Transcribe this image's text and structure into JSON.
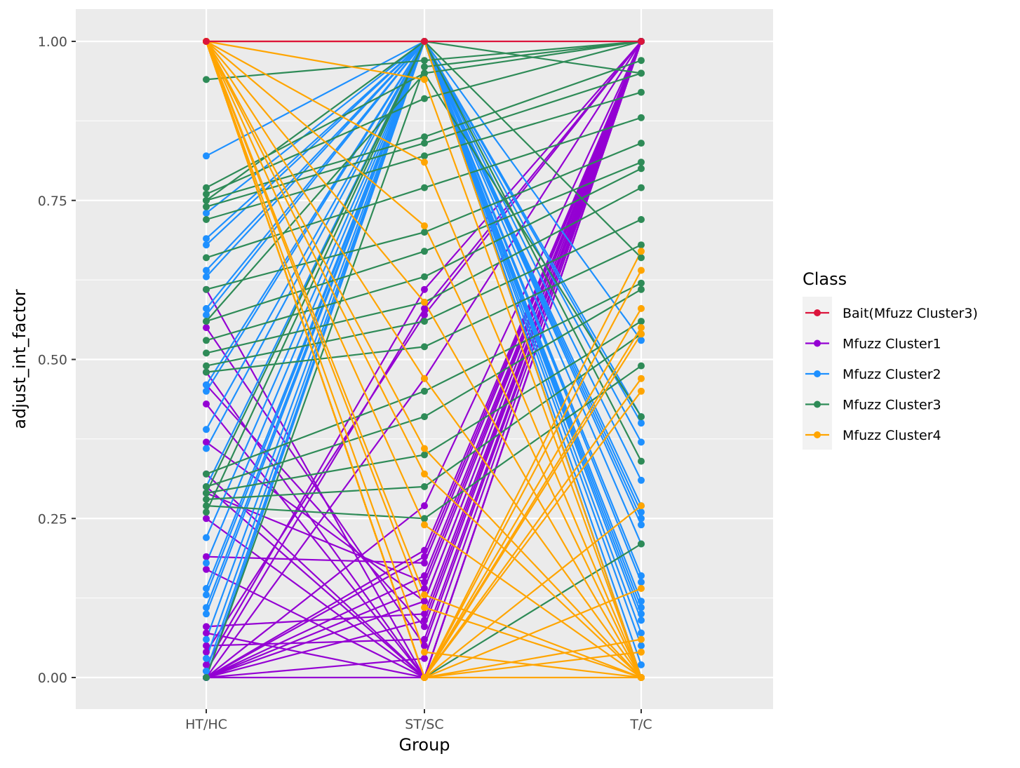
{
  "chart_data": {
    "type": "line",
    "title": "",
    "xlabel": "Group",
    "ylabel": "adjust_int_factor",
    "categories": [
      "HT/HC",
      "ST/SC",
      "T/C"
    ],
    "ylim": [
      -0.05,
      1.05
    ],
    "yticks": [
      "0.00",
      "0.25",
      "0.50",
      "0.75",
      "1.00"
    ],
    "ytick_values": [
      0,
      0.25,
      0.5,
      0.75,
      1.0
    ],
    "grid": true,
    "legend": {
      "title": "Class",
      "position": "right",
      "entries": [
        {
          "name": "Bait(Mfuzz Cluster3)",
          "color": "#DC143C"
        },
        {
          "name": "Mfuzz Cluster1",
          "color": "#9400D3"
        },
        {
          "name": "Mfuzz Cluster2",
          "color": "#1E90FF"
        },
        {
          "name": "Mfuzz Cluster3",
          "color": "#2E8B57"
        },
        {
          "name": "Mfuzz Cluster4",
          "color": "#FFA500"
        }
      ]
    },
    "series": [
      {
        "name": "Bait(Mfuzz Cluster3)",
        "color": "#DC143C",
        "lines": [
          [
            1.0,
            1.0,
            1.0
          ]
        ]
      },
      {
        "name": "Mfuzz Cluster1",
        "color": "#9400D3",
        "lines": [
          [
            0.61,
            0.0,
            1.0
          ],
          [
            0.55,
            0.05,
            1.0
          ],
          [
            0.48,
            0.0,
            1.0
          ],
          [
            0.46,
            0.08,
            1.0
          ],
          [
            0.43,
            0.0,
            1.0
          ],
          [
            0.37,
            0.12,
            1.0
          ],
          [
            0.32,
            0.0,
            1.0
          ],
          [
            0.29,
            0.15,
            1.0
          ],
          [
            0.25,
            0.0,
            1.0
          ],
          [
            0.19,
            0.18,
            1.0
          ],
          [
            0.17,
            0.0,
            1.0
          ],
          [
            0.08,
            0.1,
            1.0
          ],
          [
            0.07,
            0.0,
            1.0
          ],
          [
            0.05,
            0.06,
            1.0
          ],
          [
            0.02,
            0.61,
            1.0
          ],
          [
            0.01,
            0.58,
            1.0
          ],
          [
            0.0,
            0.47,
            1.0
          ],
          [
            0.0,
            0.27,
            1.0
          ],
          [
            0.0,
            0.2,
            1.0
          ],
          [
            0.0,
            0.19,
            1.0
          ],
          [
            0.0,
            0.16,
            1.0
          ],
          [
            0.0,
            0.14,
            1.0
          ],
          [
            0.0,
            0.12,
            1.0
          ],
          [
            0.0,
            0.09,
            1.0
          ],
          [
            0.0,
            0.03,
            1.0
          ],
          [
            0.0,
            0.0,
            1.0
          ],
          [
            0.3,
            0.0,
            1.0
          ],
          [
            0.04,
            0.57,
            1.0
          ]
        ]
      },
      {
        "name": "Mfuzz Cluster2",
        "color": "#1E90FF",
        "lines": [
          [
            0.82,
            1.0,
            0.53
          ],
          [
            0.73,
            1.0,
            0.41
          ],
          [
            0.69,
            1.0,
            0.4
          ],
          [
            0.68,
            1.0,
            0.37
          ],
          [
            0.64,
            1.0,
            0.31
          ],
          [
            0.63,
            1.0,
            0.27
          ],
          [
            0.58,
            1.0,
            0.26
          ],
          [
            0.57,
            1.0,
            0.24
          ],
          [
            0.46,
            1.0,
            0.21
          ],
          [
            0.45,
            1.0,
            0.16
          ],
          [
            0.39,
            1.0,
            0.15
          ],
          [
            0.36,
            1.0,
            0.12
          ],
          [
            0.3,
            1.0,
            0.11
          ],
          [
            0.22,
            1.0,
            0.1
          ],
          [
            0.18,
            1.0,
            0.09
          ],
          [
            0.14,
            1.0,
            0.07
          ],
          [
            0.13,
            1.0,
            0.05
          ],
          [
            0.11,
            1.0,
            0.02
          ],
          [
            0.1,
            1.0,
            0.0
          ],
          [
            0.06,
            1.0,
            0.0
          ],
          [
            0.03,
            1.0,
            0.0
          ],
          [
            0.01,
            1.0,
            0.0
          ],
          [
            0.0,
            1.0,
            0.0
          ],
          [
            0.0,
            1.0,
            0.25
          ]
        ]
      },
      {
        "name": "Mfuzz Cluster3",
        "color": "#2E8B57",
        "lines": [
          [
            0.94,
            0.97,
            1.0
          ],
          [
            0.77,
            0.95,
            1.0
          ],
          [
            0.76,
            0.91,
            1.0
          ],
          [
            0.75,
            0.85,
            0.97
          ],
          [
            0.74,
            0.84,
            0.95
          ],
          [
            0.72,
            0.82,
            0.92
          ],
          [
            0.66,
            0.77,
            0.88
          ],
          [
            0.61,
            0.7,
            0.84
          ],
          [
            0.56,
            0.67,
            0.81
          ],
          [
            0.53,
            0.63,
            0.8
          ],
          [
            0.51,
            0.59,
            0.77
          ],
          [
            0.49,
            0.56,
            0.72
          ],
          [
            0.48,
            0.52,
            0.68
          ],
          [
            0.32,
            0.45,
            0.62
          ],
          [
            0.3,
            0.41,
            0.61
          ],
          [
            0.29,
            0.35,
            0.56
          ],
          [
            0.28,
            0.3,
            0.54
          ],
          [
            0.27,
            0.25,
            0.49
          ],
          [
            0.26,
            1.0,
            0.34
          ],
          [
            1.0,
            0.0,
            0.21
          ],
          [
            0.75,
            1.0,
            0.66
          ],
          [
            0.56,
            0.95,
            0.41
          ],
          [
            0.29,
            1.0,
            0.95
          ],
          [
            0.0,
            0.96,
            1.0
          ]
        ]
      },
      {
        "name": "Mfuzz Cluster4",
        "color": "#FFA500",
        "lines": [
          [
            1.0,
            0.94,
            0.0
          ],
          [
            1.0,
            0.81,
            0.0
          ],
          [
            1.0,
            0.71,
            0.0
          ],
          [
            1.0,
            0.59,
            0.0
          ],
          [
            1.0,
            0.47,
            0.0
          ],
          [
            1.0,
            0.36,
            0.0
          ],
          [
            1.0,
            0.32,
            0.0
          ],
          [
            1.0,
            0.24,
            0.0
          ],
          [
            1.0,
            0.13,
            0.0
          ],
          [
            1.0,
            0.11,
            0.0
          ],
          [
            1.0,
            0.04,
            0.0
          ],
          [
            1.0,
            0.0,
            0.67
          ],
          [
            1.0,
            0.0,
            0.64
          ],
          [
            1.0,
            0.0,
            0.58
          ],
          [
            1.0,
            0.0,
            0.55
          ],
          [
            1.0,
            0.0,
            0.54
          ],
          [
            1.0,
            0.0,
            0.47
          ],
          [
            1.0,
            0.0,
            0.45
          ],
          [
            1.0,
            0.0,
            0.27
          ],
          [
            1.0,
            0.0,
            0.14
          ],
          [
            1.0,
            0.0,
            0.06
          ],
          [
            1.0,
            0.0,
            0.04
          ],
          [
            1.0,
            1.0,
            0.0
          ],
          [
            1.0,
            0.0,
            0.0
          ]
        ]
      }
    ]
  }
}
